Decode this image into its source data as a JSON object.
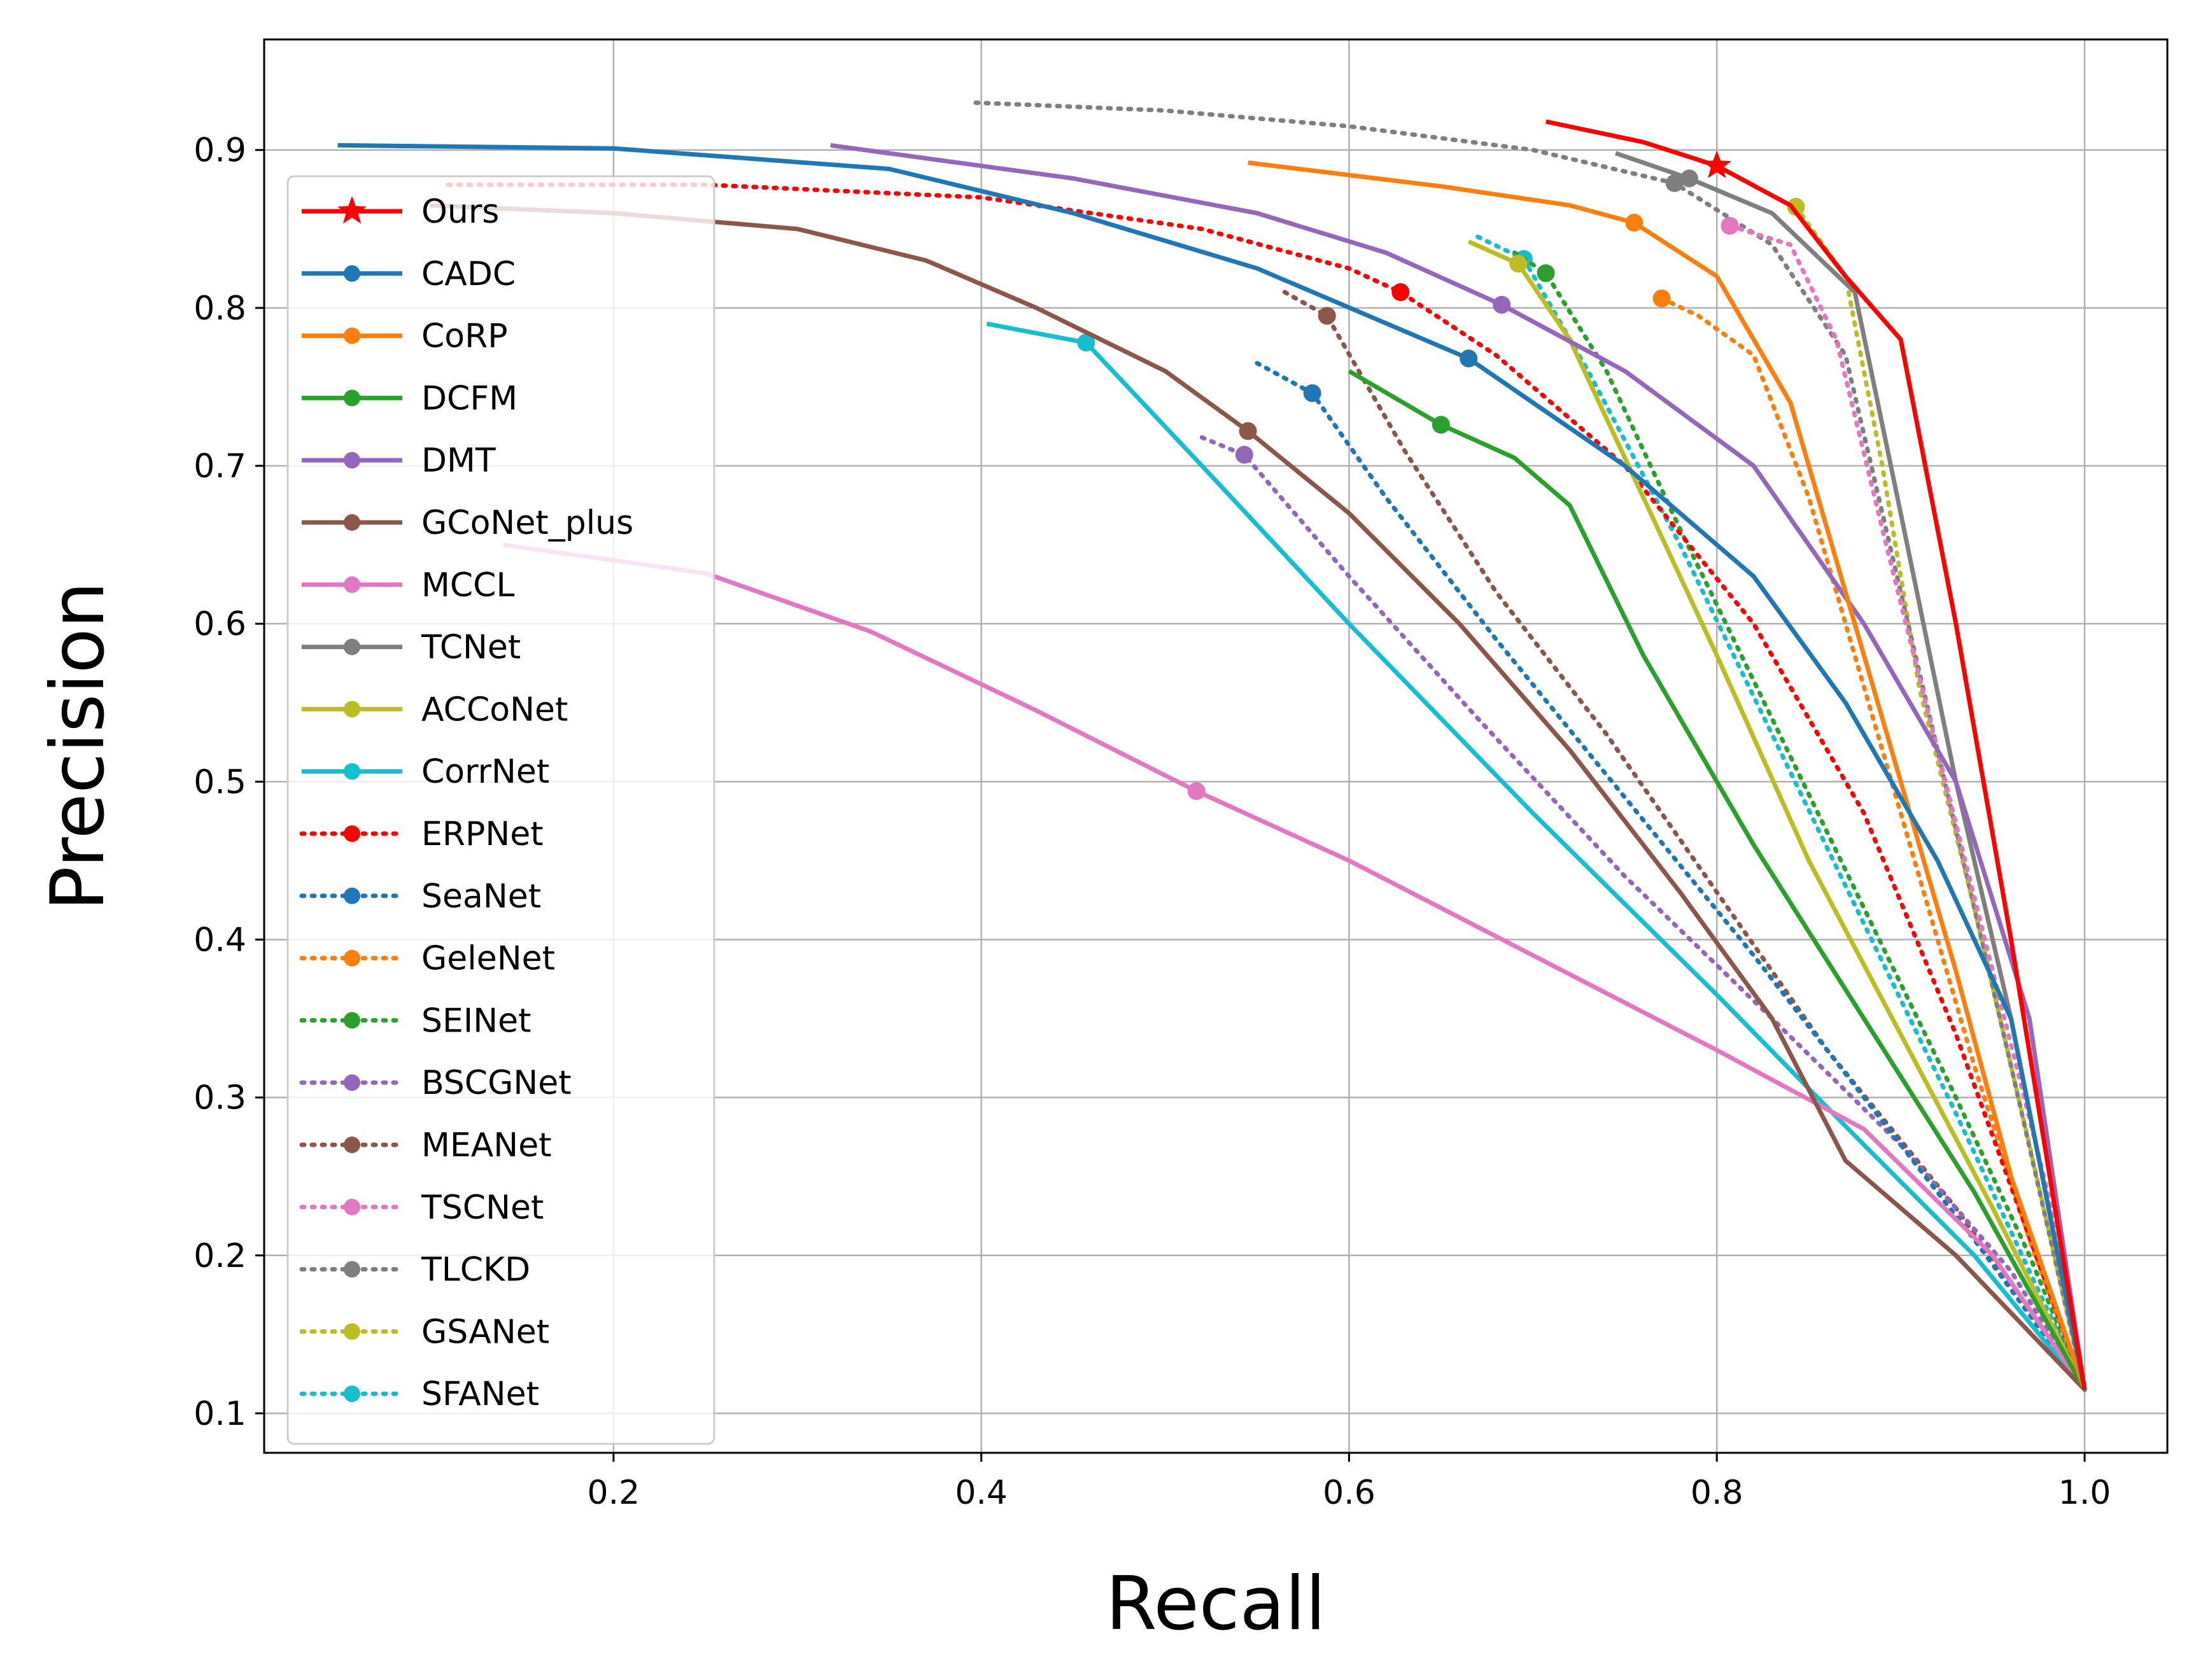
{
  "chart_data": {
    "type": "line",
    "title": "",
    "xlabel": "Recall",
    "ylabel": "Precision",
    "xlim": [
      0.01,
      1.045
    ],
    "ylim": [
      0.075,
      0.97
    ],
    "xticks": [
      0.2,
      0.4,
      0.6,
      0.8,
      1.0
    ],
    "xtick_labels": [
      "0.2",
      "0.4",
      "0.6",
      "0.8",
      "1.0"
    ],
    "yticks": [
      0.1,
      0.2,
      0.3,
      0.4,
      0.5,
      0.6,
      0.7,
      0.8,
      0.9
    ],
    "ytick_labels": [
      "0.1",
      "0.2",
      "0.3",
      "0.4",
      "0.5",
      "0.6",
      "0.7",
      "0.8",
      "0.9"
    ],
    "grid": true,
    "legend_position": "left",
    "series": [
      {
        "name": "Ours",
        "color": "#ff0000",
        "style": "solid",
        "marker": "star",
        "marker_at": [
          0.8,
          0.89
        ],
        "points": [
          [
            0.707,
            0.918
          ],
          [
            0.76,
            0.905
          ],
          [
            0.8,
            0.89
          ],
          [
            0.84,
            0.865
          ],
          [
            0.87,
            0.82
          ],
          [
            0.9,
            0.78
          ],
          [
            0.93,
            0.6
          ],
          [
            0.96,
            0.4
          ],
          [
            1.0,
            0.115
          ]
        ]
      },
      {
        "name": "CADC",
        "color": "#1f77b4",
        "style": "solid",
        "marker": "dot",
        "marker_at": [
          0.665,
          0.768
        ],
        "points": [
          [
            0.05,
            0.903
          ],
          [
            0.2,
            0.901
          ],
          [
            0.35,
            0.888
          ],
          [
            0.45,
            0.86
          ],
          [
            0.55,
            0.825
          ],
          [
            0.665,
            0.768
          ],
          [
            0.75,
            0.7
          ],
          [
            0.82,
            0.63
          ],
          [
            0.87,
            0.55
          ],
          [
            0.92,
            0.45
          ],
          [
            0.96,
            0.35
          ],
          [
            1.0,
            0.115
          ]
        ]
      },
      {
        "name": "CoRP",
        "color": "#ff7f0e",
        "style": "solid",
        "marker": "dot",
        "marker_at": [
          0.755,
          0.854
        ],
        "points": [
          [
            0.545,
            0.892
          ],
          [
            0.65,
            0.877
          ],
          [
            0.72,
            0.865
          ],
          [
            0.755,
            0.854
          ],
          [
            0.8,
            0.82
          ],
          [
            0.84,
            0.74
          ],
          [
            0.87,
            0.62
          ],
          [
            0.9,
            0.5
          ],
          [
            0.93,
            0.38
          ],
          [
            0.96,
            0.25
          ],
          [
            1.0,
            0.115
          ]
        ]
      },
      {
        "name": "DCFM",
        "color": "#2ca02c",
        "style": "solid",
        "marker": "dot",
        "marker_at": [
          0.65,
          0.726
        ],
        "points": [
          [
            0.6,
            0.76
          ],
          [
            0.65,
            0.726
          ],
          [
            0.69,
            0.705
          ],
          [
            0.72,
            0.675
          ],
          [
            0.76,
            0.58
          ],
          [
            0.82,
            0.46
          ],
          [
            0.88,
            0.35
          ],
          [
            0.94,
            0.24
          ],
          [
            1.0,
            0.115
          ]
        ]
      },
      {
        "name": "DMT",
        "color": "#9467bd",
        "style": "solid",
        "marker": "dot",
        "marker_at": [
          0.683,
          0.802
        ],
        "points": [
          [
            0.318,
            0.903
          ],
          [
            0.45,
            0.882
          ],
          [
            0.55,
            0.86
          ],
          [
            0.62,
            0.835
          ],
          [
            0.683,
            0.802
          ],
          [
            0.75,
            0.76
          ],
          [
            0.82,
            0.7
          ],
          [
            0.88,
            0.6
          ],
          [
            0.93,
            0.5
          ],
          [
            0.97,
            0.35
          ],
          [
            1.0,
            0.115
          ]
        ]
      },
      {
        "name": "GCoNet_plus",
        "color": "#8c564b",
        "style": "solid",
        "marker": "dot",
        "marker_at": [
          0.545,
          0.722
        ],
        "points": [
          [
            0.1,
            0.865
          ],
          [
            0.2,
            0.86
          ],
          [
            0.3,
            0.85
          ],
          [
            0.37,
            0.83
          ],
          [
            0.43,
            0.8
          ],
          [
            0.5,
            0.76
          ],
          [
            0.545,
            0.722
          ],
          [
            0.6,
            0.67
          ],
          [
            0.66,
            0.6
          ],
          [
            0.72,
            0.52
          ],
          [
            0.78,
            0.43
          ],
          [
            0.83,
            0.35
          ],
          [
            0.87,
            0.26
          ],
          [
            0.93,
            0.2
          ],
          [
            1.0,
            0.115
          ]
        ]
      },
      {
        "name": "MCCL",
        "color": "#e377c2",
        "style": "solid",
        "marker": "dot",
        "marker_at": [
          0.517,
          0.494
        ],
        "points": [
          [
            0.14,
            0.65
          ],
          [
            0.25,
            0.632
          ],
          [
            0.34,
            0.595
          ],
          [
            0.43,
            0.545
          ],
          [
            0.517,
            0.494
          ],
          [
            0.6,
            0.45
          ],
          [
            0.7,
            0.39
          ],
          [
            0.8,
            0.33
          ],
          [
            0.88,
            0.28
          ],
          [
            0.95,
            0.2
          ],
          [
            1.0,
            0.115
          ]
        ]
      },
      {
        "name": "TCNet",
        "color": "#7f7f7f",
        "style": "solid",
        "marker": "dot",
        "marker_at": [
          0.785,
          0.882
        ],
        "points": [
          [
            0.745,
            0.898
          ],
          [
            0.785,
            0.882
          ],
          [
            0.83,
            0.86
          ],
          [
            0.875,
            0.81
          ],
          [
            0.9,
            0.67
          ],
          [
            0.93,
            0.5
          ],
          [
            0.96,
            0.35
          ],
          [
            1.0,
            0.115
          ]
        ]
      },
      {
        "name": "ACCoNet",
        "color": "#bcbd22",
        "style": "solid",
        "marker": "dot",
        "marker_at": [
          0.692,
          0.828
        ],
        "points": [
          [
            0.665,
            0.842
          ],
          [
            0.692,
            0.828
          ],
          [
            0.72,
            0.78
          ],
          [
            0.76,
            0.68
          ],
          [
            0.8,
            0.58
          ],
          [
            0.85,
            0.45
          ],
          [
            0.9,
            0.34
          ],
          [
            0.95,
            0.23
          ],
          [
            1.0,
            0.115
          ]
        ]
      },
      {
        "name": "CorrNet",
        "color": "#17becf",
        "style": "solid",
        "marker": "dot",
        "marker_at": [
          0.457,
          0.778
        ],
        "points": [
          [
            0.403,
            0.79
          ],
          [
            0.457,
            0.778
          ],
          [
            0.52,
            0.7
          ],
          [
            0.6,
            0.6
          ],
          [
            0.7,
            0.48
          ],
          [
            0.8,
            0.365
          ],
          [
            0.88,
            0.27
          ],
          [
            0.94,
            0.2
          ],
          [
            1.0,
            0.115
          ]
        ]
      },
      {
        "name": "ERPNet",
        "color": "#ff0000",
        "style": "dotted",
        "marker": "dot",
        "marker_at": [
          0.628,
          0.81
        ],
        "points": [
          [
            0.11,
            0.878
          ],
          [
            0.25,
            0.878
          ],
          [
            0.4,
            0.87
          ],
          [
            0.52,
            0.85
          ],
          [
            0.6,
            0.825
          ],
          [
            0.628,
            0.81
          ],
          [
            0.68,
            0.77
          ],
          [
            0.75,
            0.7
          ],
          [
            0.82,
            0.6
          ],
          [
            0.88,
            0.48
          ],
          [
            0.93,
            0.34
          ],
          [
            1.0,
            0.115
          ]
        ]
      },
      {
        "name": "SeaNet",
        "color": "#1f77b4",
        "style": "dotted",
        "marker": "dot",
        "marker_at": [
          0.58,
          0.746
        ],
        "points": [
          [
            0.55,
            0.765
          ],
          [
            0.58,
            0.746
          ],
          [
            0.62,
            0.68
          ],
          [
            0.68,
            0.59
          ],
          [
            0.75,
            0.49
          ],
          [
            0.82,
            0.39
          ],
          [
            0.88,
            0.3
          ],
          [
            0.94,
            0.21
          ],
          [
            1.0,
            0.115
          ]
        ]
      },
      {
        "name": "GeleNet",
        "color": "#ff7f0e",
        "style": "dotted",
        "marker": "dot",
        "marker_at": [
          0.77,
          0.806
        ],
        "points": [
          [
            0.77,
            0.806
          ],
          [
            0.79,
            0.795
          ],
          [
            0.82,
            0.77
          ],
          [
            0.85,
            0.68
          ],
          [
            0.88,
            0.56
          ],
          [
            0.91,
            0.44
          ],
          [
            0.94,
            0.32
          ],
          [
            0.97,
            0.21
          ],
          [
            1.0,
            0.115
          ]
        ]
      },
      {
        "name": "SEINet",
        "color": "#2ca02c",
        "style": "dotted",
        "marker": "dot",
        "marker_at": [
          0.707,
          0.822
        ],
        "points": [
          [
            0.69,
            0.835
          ],
          [
            0.707,
            0.822
          ],
          [
            0.74,
            0.76
          ],
          [
            0.78,
            0.66
          ],
          [
            0.83,
            0.54
          ],
          [
            0.88,
            0.42
          ],
          [
            0.93,
            0.3
          ],
          [
            0.97,
            0.2
          ],
          [
            1.0,
            0.115
          ]
        ]
      },
      {
        "name": "BSCGNet",
        "color": "#9467bd",
        "style": "dotted",
        "marker": "dot",
        "marker_at": [
          0.543,
          0.707
        ],
        "points": [
          [
            0.52,
            0.718
          ],
          [
            0.543,
            0.707
          ],
          [
            0.6,
            0.63
          ],
          [
            0.67,
            0.54
          ],
          [
            0.75,
            0.44
          ],
          [
            0.83,
            0.35
          ],
          [
            0.9,
            0.27
          ],
          [
            0.96,
            0.19
          ],
          [
            1.0,
            0.115
          ]
        ]
      },
      {
        "name": "MEANet",
        "color": "#8c564b",
        "style": "dotted",
        "marker": "dot",
        "marker_at": [
          0.588,
          0.795
        ],
        "points": [
          [
            0.565,
            0.81
          ],
          [
            0.588,
            0.795
          ],
          [
            0.63,
            0.71
          ],
          [
            0.68,
            0.62
          ],
          [
            0.74,
            0.53
          ],
          [
            0.8,
            0.43
          ],
          [
            0.86,
            0.33
          ],
          [
            0.93,
            0.23
          ],
          [
            1.0,
            0.115
          ]
        ]
      },
      {
        "name": "TSCNet",
        "color": "#e377c2",
        "style": "dotted",
        "marker": "dot",
        "marker_at": [
          0.807,
          0.852
        ],
        "points": [
          [
            0.807,
            0.852
          ],
          [
            0.84,
            0.84
          ],
          [
            0.865,
            0.78
          ],
          [
            0.89,
            0.66
          ],
          [
            0.92,
            0.52
          ],
          [
            0.95,
            0.38
          ],
          [
            0.98,
            0.24
          ],
          [
            1.0,
            0.115
          ]
        ]
      },
      {
        "name": "TLCKD",
        "color": "#7f7f7f",
        "style": "dotted",
        "marker": "dot",
        "marker_at": [
          0.777,
          0.879
        ],
        "points": [
          [
            0.397,
            0.93
          ],
          [
            0.5,
            0.925
          ],
          [
            0.6,
            0.915
          ],
          [
            0.7,
            0.9
          ],
          [
            0.777,
            0.879
          ],
          [
            0.83,
            0.84
          ],
          [
            0.87,
            0.77
          ],
          [
            0.9,
            0.62
          ],
          [
            0.93,
            0.47
          ],
          [
            0.96,
            0.32
          ],
          [
            1.0,
            0.115
          ]
        ]
      },
      {
        "name": "GSANet",
        "color": "#bcbd22",
        "style": "dotted",
        "marker": "dot",
        "marker_at": [
          0.843,
          0.864
        ],
        "points": [
          [
            0.843,
            0.864
          ],
          [
            0.87,
            0.82
          ],
          [
            0.89,
            0.7
          ],
          [
            0.91,
            0.56
          ],
          [
            0.94,
            0.42
          ],
          [
            0.97,
            0.27
          ],
          [
            1.0,
            0.115
          ]
        ]
      },
      {
        "name": "SFANet",
        "color": "#17becf",
        "style": "dotted",
        "marker": "dot",
        "marker_at": [
          0.695,
          0.831
        ],
        "points": [
          [
            0.67,
            0.845
          ],
          [
            0.695,
            0.831
          ],
          [
            0.73,
            0.76
          ],
          [
            0.78,
            0.65
          ],
          [
            0.83,
            0.53
          ],
          [
            0.88,
            0.41
          ],
          [
            0.93,
            0.29
          ],
          [
            0.97,
            0.19
          ],
          [
            1.0,
            0.115
          ]
        ]
      }
    ]
  }
}
